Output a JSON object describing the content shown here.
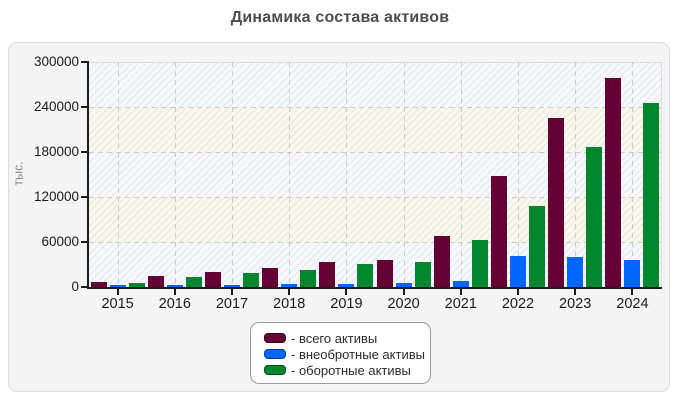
{
  "chart_data": {
    "type": "bar",
    "title": "Динамика состава активов",
    "ylabel": "тыс.",
    "xlabel": "",
    "ylim": [
      0,
      300000
    ],
    "ytick_step": 60000,
    "ytick_labels": [
      "0",
      "60000",
      "120000",
      "180000",
      "240000",
      "300000"
    ],
    "grid": "dashed horizontal and vertical",
    "plot_bands": [
      "#f8f9fc",
      "#faf9ea"
    ],
    "categories": [
      "2015",
      "2016",
      "2017",
      "2018",
      "2019",
      "2020",
      "2021",
      "2022",
      "2023",
      "2024"
    ],
    "series": [
      {
        "key": "total",
        "name": "всего активы",
        "color": "#640236",
        "swatch_border": "#3c0120",
        "values": [
          6000,
          14000,
          19500,
          25000,
          33000,
          36000,
          68000,
          148000,
          225000,
          278000
        ]
      },
      {
        "key": "noncurrent",
        "name": "внеобротные активы",
        "color": "#0066ff",
        "swatch_border": "#0041a8",
        "values": [
          2000,
          2700,
          3200,
          3600,
          4500,
          5300,
          8000,
          41000,
          40000,
          36000
        ]
      },
      {
        "key": "current",
        "name": "оборотные активы",
        "color": "#00862e",
        "swatch_border": "#00521b",
        "values": [
          5000,
          13200,
          18800,
          22000,
          30500,
          33000,
          62500,
          108500,
          187000,
          245000
        ]
      }
    ],
    "legend": {
      "position": "bottom-center",
      "items": [
        "- всего активы",
        "- внеобротные активы",
        "- оборотные активы"
      ]
    }
  }
}
